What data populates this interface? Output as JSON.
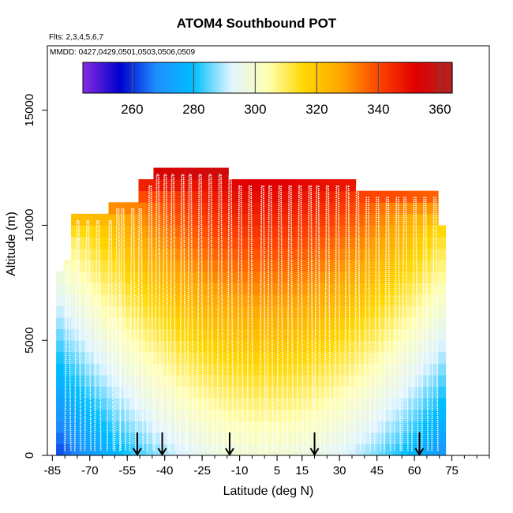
{
  "chart_data": {
    "type": "heatmap",
    "title": "ATOM4 Southbound POT",
    "flights_note": "Flts: 2,3,4,5,6,7",
    "dates_note": "MMDD: 0427,0429,0501,0503,0506,0509",
    "xlabel": "Latitude (deg N)",
    "ylabel": "Altitude (m)",
    "xlim": [
      -87,
      90
    ],
    "ylim": [
      0,
      17800
    ],
    "x_ticks": [
      -85,
      -70,
      -55,
      -40,
      -25,
      -10,
      5,
      15,
      30,
      45,
      60,
      75
    ],
    "x_tick_labels": [
      "-85",
      "-70",
      "-55",
      "-40",
      "-25",
      "-10",
      "5",
      "15",
      "30",
      "45",
      "60",
      "75"
    ],
    "y_ticks": [
      0,
      5000,
      10000,
      15000
    ],
    "y_tick_labels": [
      "0",
      "5000",
      "10000",
      "15000"
    ],
    "colorbar": {
      "min": 244,
      "max": 364,
      "ticks": [
        260,
        280,
        300,
        320,
        340,
        360
      ],
      "tick_labels": [
        "260",
        "280",
        "300",
        "320",
        "340",
        "360"
      ],
      "stops": [
        "#8a2be2",
        "#0000cd",
        "#1e90ff",
        "#00bfff",
        "#e0f4ff",
        "#ffffb3",
        "#ffd700",
        "#ffa500",
        "#ff4500",
        "#e00000",
        "#b22222"
      ]
    },
    "latitude_bins": [
      -82,
      -79,
      -76,
      -73,
      -70,
      -67,
      -64,
      -61,
      -58,
      -55,
      -52,
      -49,
      -46,
      -43,
      -40,
      -37,
      -34,
      -31,
      -28,
      -25,
      -22,
      -19,
      -16,
      -13,
      -10,
      -7,
      -4,
      -1,
      2,
      5,
      8,
      11,
      14,
      17,
      20,
      23,
      26,
      29,
      32,
      35,
      38,
      41,
      44,
      47,
      50,
      53,
      56,
      59,
      62,
      65,
      68,
      71
    ],
    "column_top_altitude": [
      8000,
      8500,
      10500,
      10500,
      10500,
      10500,
      10500,
      11000,
      11000,
      11000,
      11000,
      12000,
      12000,
      12500,
      12500,
      12500,
      12500,
      12500,
      12500,
      12500,
      12500,
      12500,
      12500,
      12000,
      12000,
      12000,
      12000,
      12000,
      12000,
      12000,
      12000,
      12000,
      12000,
      12000,
      12000,
      12000,
      12000,
      12000,
      12000,
      12000,
      11500,
      11500,
      11500,
      11500,
      11500,
      11500,
      11500,
      11500,
      11500,
      11500,
      11500,
      10000
    ],
    "marked_latitudes": [
      -51,
      -41,
      -14,
      20,
      62
    ],
    "profile_latitudes": [
      -80,
      -76,
      -72,
      -68,
      -63,
      -60,
      -58,
      -54,
      -51,
      -47,
      -44,
      -41,
      -38,
      -34,
      -31,
      -27,
      -23,
      -19,
      -15,
      -11,
      -7,
      -2,
      1,
      5,
      9,
      13,
      17,
      20,
      24,
      28,
      32,
      36,
      40,
      44,
      48,
      52,
      55,
      59,
      63,
      67
    ]
  }
}
